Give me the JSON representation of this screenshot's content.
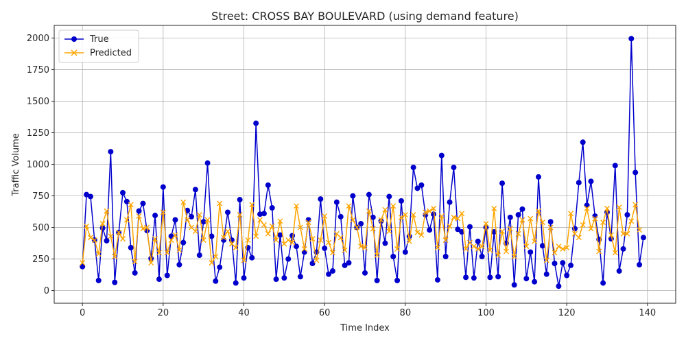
{
  "chart_data": {
    "type": "line",
    "title": "Street: CROSS BAY BOULEVARD (using demand feature)",
    "xlabel": "Time Index",
    "ylabel": "Traffic Volume",
    "xlim": [
      -7,
      147
    ],
    "ylim": [
      -100,
      2100
    ],
    "xticks": [
      0,
      20,
      40,
      60,
      80,
      100,
      120,
      140
    ],
    "yticks": [
      0,
      250,
      500,
      750,
      1000,
      1250,
      1500,
      1750,
      2000
    ],
    "grid": true,
    "legend": "top-left",
    "series": [
      {
        "name": "True",
        "color": "#0000cc",
        "marker": "circle",
        "values": [
          190,
          760,
          745,
          400,
          80,
          495,
          395,
          1100,
          65,
          460,
          775,
          705,
          340,
          140,
          630,
          690,
          475,
          255,
          595,
          90,
          820,
          120,
          430,
          560,
          205,
          380,
          635,
          585,
          800,
          280,
          545,
          1010,
          430,
          75,
          185,
          400,
          620,
          400,
          60,
          720,
          100,
          340,
          260,
          1325,
          605,
          610,
          835,
          655,
          90,
          440,
          100,
          250,
          435,
          350,
          110,
          305,
          560,
          215,
          305,
          725,
          335,
          130,
          155,
          700,
          585,
          200,
          220,
          750,
          500,
          530,
          140,
          760,
          580,
          80,
          550,
          375,
          745,
          270,
          80,
          710,
          305,
          430,
          975,
          810,
          835,
          600,
          480,
          605,
          85,
          1070,
          270,
          700,
          975,
          485,
          465,
          105,
          505,
          100,
          390,
          270,
          500,
          105,
          465,
          110,
          850,
          375,
          580,
          45,
          600,
          645,
          95,
          305,
          70,
          900,
          355,
          130,
          545,
          215,
          35,
          220,
          120,
          200,
          490,
          855,
          1175,
          675,
          865,
          590,
          405,
          60,
          620,
          410,
          990,
          155,
          330,
          600,
          1995,
          935,
          205,
          420
        ]
      },
      {
        "name": "Predicted",
        "color": "#ffa500",
        "marker": "x",
        "values": [
          220,
          510,
          420,
          400,
          290,
          530,
          630,
          430,
          270,
          460,
          410,
          560,
          680,
          230,
          590,
          490,
          500,
          220,
          410,
          300,
          620,
          300,
          400,
          440,
          320,
          700,
          560,
          500,
          470,
          600,
          400,
          560,
          220,
          270,
          690,
          420,
          470,
          370,
          340,
          600,
          240,
          400,
          680,
          430,
          560,
          520,
          450,
          510,
          400,
          550,
          370,
          400,
          380,
          670,
          500,
          330,
          540,
          410,
          240,
          400,
          590,
          380,
          300,
          450,
          420,
          320,
          670,
          560,
          500,
          350,
          340,
          630,
          490,
          280,
          560,
          640,
          470,
          670,
          330,
          580,
          600,
          390,
          600,
          460,
          440,
          620,
          630,
          650,
          340,
          590,
          400,
          510,
          580,
          570,
          610,
          330,
          380,
          350,
          330,
          350,
          530,
          320,
          650,
          280,
          470,
          310,
          490,
          270,
          450,
          560,
          350,
          570,
          390,
          630,
          540,
          240,
          500,
          300,
          350,
          330,
          340,
          610,
          450,
          420,
          520,
          650,
          490,
          570,
          310,
          540,
          650,
          440,
          300,
          660,
          450,
          450,
          550,
          680,
          480
        ]
      }
    ]
  }
}
